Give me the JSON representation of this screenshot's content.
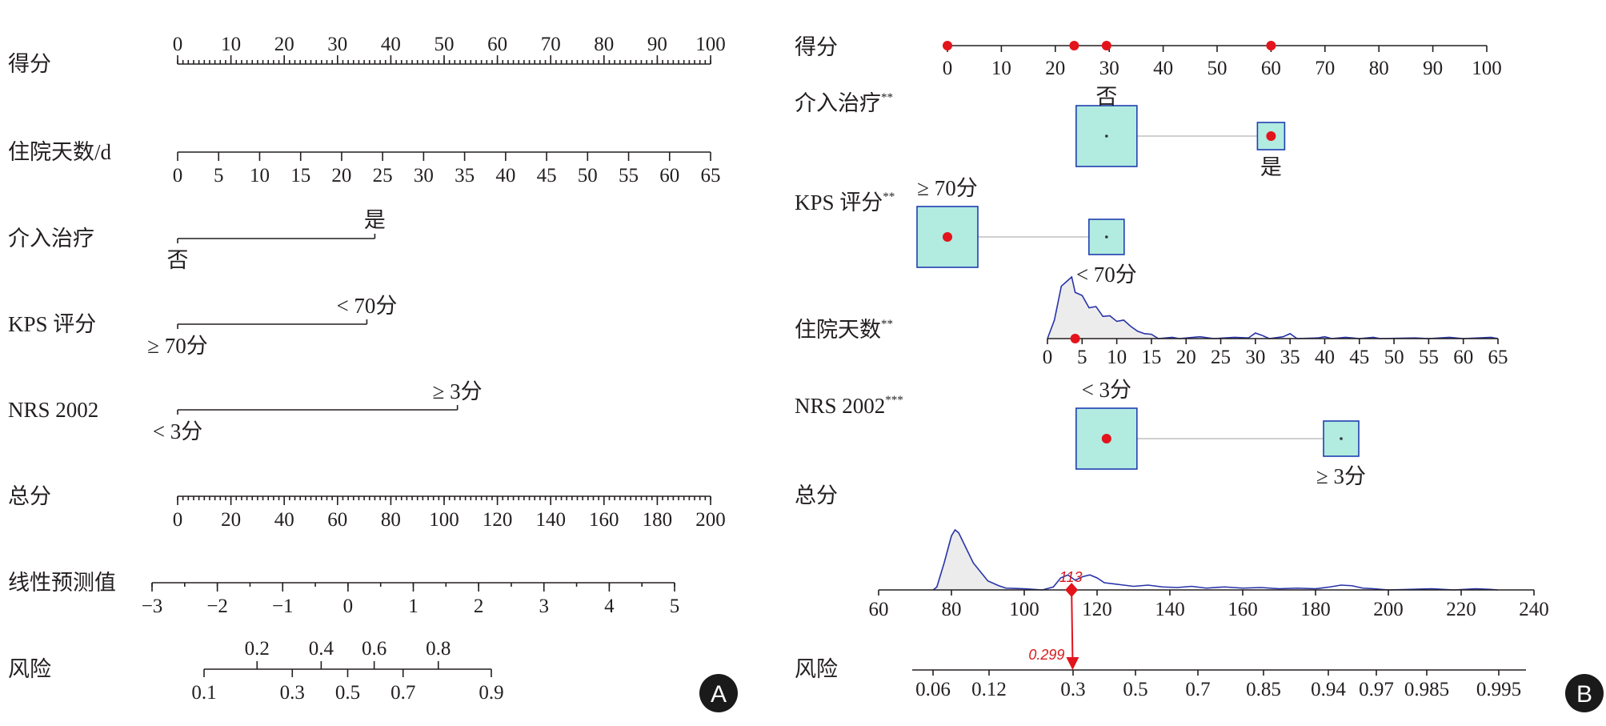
{
  "chart_data": [
    {
      "panel": "A",
      "type": "nomogram",
      "rows": [
        {
          "label": "得分",
          "kind": "scale",
          "min": 0,
          "max": 100,
          "ticks": [
            0,
            10,
            20,
            30,
            40,
            50,
            60,
            70,
            80,
            90,
            100
          ],
          "minor_step": 1,
          "labels_above": true
        },
        {
          "label": "住院天数/d",
          "kind": "scale",
          "min": 0,
          "max": 65,
          "ticks": [
            0,
            5,
            10,
            15,
            20,
            25,
            30,
            35,
            40,
            45,
            50,
            55,
            60,
            65
          ]
        },
        {
          "label": "介入治疗",
          "kind": "categorical",
          "levels": [
            {
              "name": "否",
              "points": 0,
              "pos": "below"
            },
            {
              "name": "是",
              "points": 37,
              "pos": "above"
            }
          ]
        },
        {
          "label": "KPS 评分",
          "kind": "categorical",
          "levels": [
            {
              "name": "≥ 70分",
              "points": 0,
              "pos": "below"
            },
            {
              "name": "< 70分",
              "points": 35.5,
              "pos": "above"
            }
          ]
        },
        {
          "label": "NRS 2002",
          "kind": "categorical",
          "levels": [
            {
              "name": "< 3分",
              "points": 0,
              "pos": "below"
            },
            {
              "name": "≥ 3分",
              "points": 52.5,
              "pos": "above"
            }
          ]
        },
        {
          "label": "总分",
          "kind": "scale",
          "min": 0,
          "max": 200,
          "ticks": [
            0,
            20,
            40,
            60,
            80,
            100,
            120,
            140,
            160,
            180,
            200
          ],
          "minor_step": 2
        },
        {
          "label": "线性预测值",
          "kind": "scale",
          "min": -3,
          "max": 5,
          "ticks": [
            -3,
            -2,
            -1,
            0,
            1,
            2,
            3,
            4,
            5
          ],
          "tick_labels": [
            "−3",
            "−2",
            "−1",
            "0",
            "1",
            "2",
            "3",
            "4",
            "5"
          ],
          "minor_step": 0.5
        },
        {
          "label": "风险",
          "kind": "risk",
          "ticks_above": [
            0.2,
            0.4,
            0.6,
            0.8
          ],
          "ticks_below": [
            0.1,
            0.3,
            0.5,
            0.7,
            0.9
          ]
        }
      ],
      "badge": "A"
    },
    {
      "panel": "B",
      "type": "interactive-nomogram",
      "score_axis": {
        "label": "得分",
        "ticks": [
          0,
          10,
          20,
          30,
          40,
          50,
          60,
          70,
          80,
          90,
          100
        ],
        "points": [
          0,
          23.5,
          29.5,
          60
        ]
      },
      "factors": [
        {
          "label": "介入治疗",
          "sig": "**",
          "levels": [
            {
              "name": "否",
              "points": 29.5,
              "size": "large",
              "selected": false
            },
            {
              "name": "是",
              "points": 60,
              "size": "small",
              "selected": true
            }
          ]
        },
        {
          "label": "KPS 评分",
          "sig": "**",
          "levels": [
            {
              "name": "≥ 70分",
              "points": 0,
              "size": "large",
              "selected": true
            },
            {
              "name": "< 70分",
              "points": 29.5,
              "size": "small",
              "selected": false
            }
          ]
        },
        {
          "label": "住院天数",
          "sig": "**",
          "axis_ticks": [
            0,
            5,
            10,
            15,
            20,
            25,
            30,
            35,
            40,
            45,
            50,
            55,
            60,
            65
          ],
          "selected_value": 4,
          "density": [
            [
              0,
              0
            ],
            [
              1,
              0.3
            ],
            [
              2,
              0.85
            ],
            [
              3,
              0.95
            ],
            [
              3.5,
              1
            ],
            [
              4,
              0.75
            ],
            [
              5,
              0.7
            ],
            [
              6,
              0.5
            ],
            [
              7,
              0.52
            ],
            [
              8,
              0.36
            ],
            [
              9,
              0.37
            ],
            [
              10,
              0.28
            ],
            [
              11,
              0.3
            ],
            [
              12,
              0.2
            ],
            [
              13,
              0.12
            ],
            [
              14,
              0.08
            ],
            [
              15,
              0.07
            ],
            [
              16,
              0
            ],
            [
              18,
              0.02
            ],
            [
              19,
              0
            ],
            [
              22,
              0.03
            ],
            [
              24,
              0
            ],
            [
              27,
              0.02
            ],
            [
              29,
              0.01
            ],
            [
              30,
              0.09
            ],
            [
              31,
              0.05
            ],
            [
              32,
              0
            ],
            [
              34,
              0.03
            ],
            [
              35,
              0.08
            ],
            [
              36,
              0
            ],
            [
              39,
              0.01
            ],
            [
              40,
              0.03
            ],
            [
              41,
              0
            ],
            [
              43,
              0.02
            ],
            [
              44,
              0.01
            ],
            [
              45,
              0
            ],
            [
              47,
              0.02
            ],
            [
              48,
              0
            ],
            [
              53,
              0.01
            ],
            [
              55,
              0
            ],
            [
              58,
              0.02
            ],
            [
              60,
              0
            ],
            [
              64,
              0.02
            ],
            [
              65,
              0
            ]
          ]
        },
        {
          "label": "NRS 2002",
          "sig": "***",
          "levels": [
            {
              "name": "< 3分",
              "points": 29.5,
              "size": "large",
              "selected": true
            },
            {
              "name": "≥ 3分",
              "points": 73,
              "size": "small",
              "selected": false
            }
          ]
        }
      ],
      "total": {
        "label": "总分",
        "axis_ticks": [
          60,
          80,
          100,
          120,
          140,
          160,
          180,
          200,
          220,
          240
        ],
        "selected_value": 113,
        "annotation": "113",
        "density": [
          [
            75,
            0
          ],
          [
            76,
            0.05
          ],
          [
            78,
            0.45
          ],
          [
            80,
            0.9
          ],
          [
            81,
            1
          ],
          [
            82,
            0.95
          ],
          [
            84,
            0.7
          ],
          [
            86,
            0.45
          ],
          [
            88,
            0.3
          ],
          [
            90,
            0.15
          ],
          [
            93,
            0.07
          ],
          [
            95,
            0.03
          ],
          [
            100,
            0.02
          ],
          [
            105,
            0
          ],
          [
            108,
            0.05
          ],
          [
            110,
            0.2
          ],
          [
            112,
            0.25
          ],
          [
            114,
            0.16
          ],
          [
            116,
            0.22
          ],
          [
            118,
            0.25
          ],
          [
            120,
            0.2
          ],
          [
            122,
            0.12
          ],
          [
            126,
            0.09
          ],
          [
            130,
            0.06
          ],
          [
            134,
            0.08
          ],
          [
            138,
            0.05
          ],
          [
            142,
            0.04
          ],
          [
            146,
            0.06
          ],
          [
            150,
            0.03
          ],
          [
            155,
            0.05
          ],
          [
            160,
            0.03
          ],
          [
            165,
            0.04
          ],
          [
            170,
            0.02
          ],
          [
            175,
            0.03
          ],
          [
            180,
            0.02
          ],
          [
            184,
            0.05
          ],
          [
            187,
            0.08
          ],
          [
            190,
            0.07
          ],
          [
            193,
            0.03
          ],
          [
            196,
            0.02
          ],
          [
            200,
            0
          ],
          [
            206,
            0.01
          ],
          [
            212,
            0.02
          ],
          [
            218,
            0
          ],
          [
            224,
            0.02
          ],
          [
            228,
            0.01
          ],
          [
            230,
            0
          ]
        ]
      },
      "risk": {
        "label": "风险",
        "ticks": [
          0.06,
          0.12,
          0.3,
          0.5,
          0.7,
          0.85,
          0.94,
          0.97,
          0.985,
          0.995
        ],
        "tick_labels": [
          "0.06",
          "0.12",
          "0.3",
          "0.5",
          "0.7",
          "0.85",
          "0.94",
          "0.97",
          "0.985",
          "0.995"
        ],
        "selected_value": 0.299,
        "annotation": "0.299"
      },
      "badge": "B"
    }
  ]
}
